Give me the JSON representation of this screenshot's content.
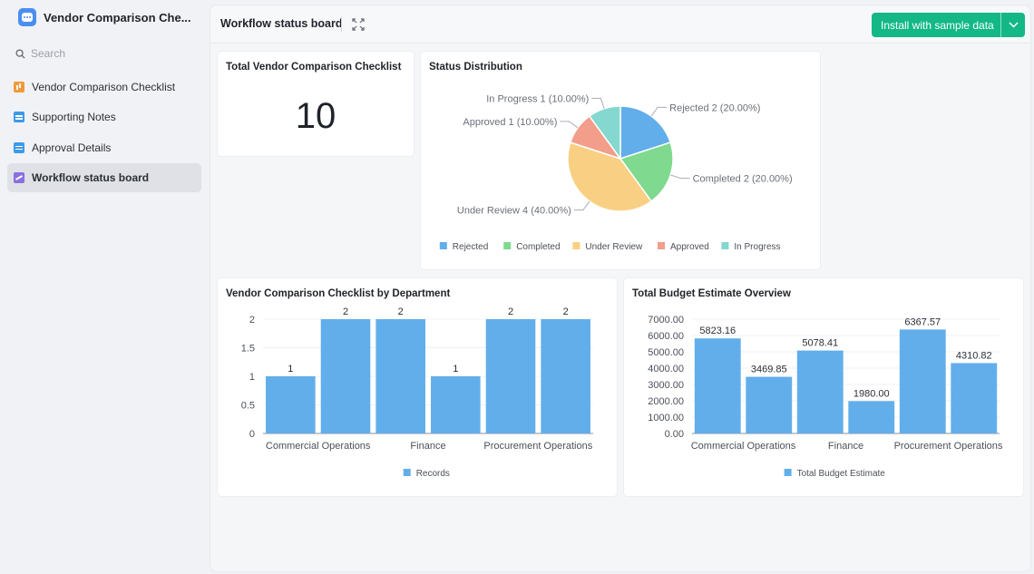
{
  "app": {
    "title": "Vendor Comparison Che..."
  },
  "search": {
    "placeholder": "Search"
  },
  "sidebar": {
    "items": [
      {
        "label": "Vendor Comparison Checklist",
        "icon": "table-icon"
      },
      {
        "label": "Supporting Notes",
        "icon": "document-icon"
      },
      {
        "label": "Approval Details",
        "icon": "document-icon"
      },
      {
        "label": "Workflow status board",
        "icon": "dashboard-icon",
        "active": true
      }
    ]
  },
  "toolbar": {
    "title": "Workflow status board",
    "install_label": "Install with sample data"
  },
  "colors": {
    "accent": "#13b886",
    "bar": "#62aeea"
  },
  "total_card": {
    "title": "Total Vendor Comparison Checklist",
    "value": "10"
  },
  "chart_data": [
    {
      "type": "pie",
      "title": "Status Distribution",
      "slices": [
        {
          "name": "Rejected",
          "value": 2,
          "label": "Rejected 2 (20.00%)",
          "color": "#62aeea"
        },
        {
          "name": "Completed",
          "value": 2,
          "label": "Completed 2 (20.00%)",
          "color": "#7fd98f"
        },
        {
          "name": "Under Review",
          "value": 4,
          "label": "Under Review 4 (40.00%)",
          "color": "#f9d083"
        },
        {
          "name": "Approved",
          "value": 1,
          "label": "Approved 1 (10.00%)",
          "color": "#f29e8a"
        },
        {
          "name": "In Progress",
          "value": 1,
          "label": "In Progress 1 (10.00%)",
          "color": "#84d8cf"
        }
      ],
      "legend": [
        "Rejected",
        "Completed",
        "Under Review",
        "Approved",
        "In Progress"
      ],
      "legend_position": "bottom"
    },
    {
      "type": "bar",
      "title": "Vendor Comparison Checklist by Department",
      "x_labels": [
        "Commercial Operations",
        "Finance",
        "Procurement Operations"
      ],
      "values": [
        1,
        2,
        2,
        1,
        2,
        2
      ],
      "value_labels": [
        "1",
        "2",
        "2",
        "1",
        "2",
        "2"
      ],
      "y_ticks": [
        "0",
        "0.5",
        "1",
        "1.5",
        "2"
      ],
      "ylim": [
        0,
        2
      ],
      "series_name": "Records",
      "legend_position": "bottom"
    },
    {
      "type": "bar",
      "title": "Total Budget Estimate Overview",
      "x_labels": [
        "Commercial Operations",
        "Finance",
        "Procurement Operations"
      ],
      "values": [
        5823.16,
        3469.85,
        5078.41,
        1980.0,
        6367.57,
        4310.82
      ],
      "value_labels": [
        "5823.16",
        "3469.85",
        "5078.41",
        "1980.00",
        "6367.57",
        "4310.82"
      ],
      "y_ticks": [
        "0.00",
        "1000.00",
        "2000.00",
        "3000.00",
        "4000.00",
        "5000.00",
        "6000.00",
        "7000.00"
      ],
      "ylim": [
        0,
        7000
      ],
      "series_name": "Total Budget Estimate",
      "legend_position": "bottom"
    }
  ]
}
